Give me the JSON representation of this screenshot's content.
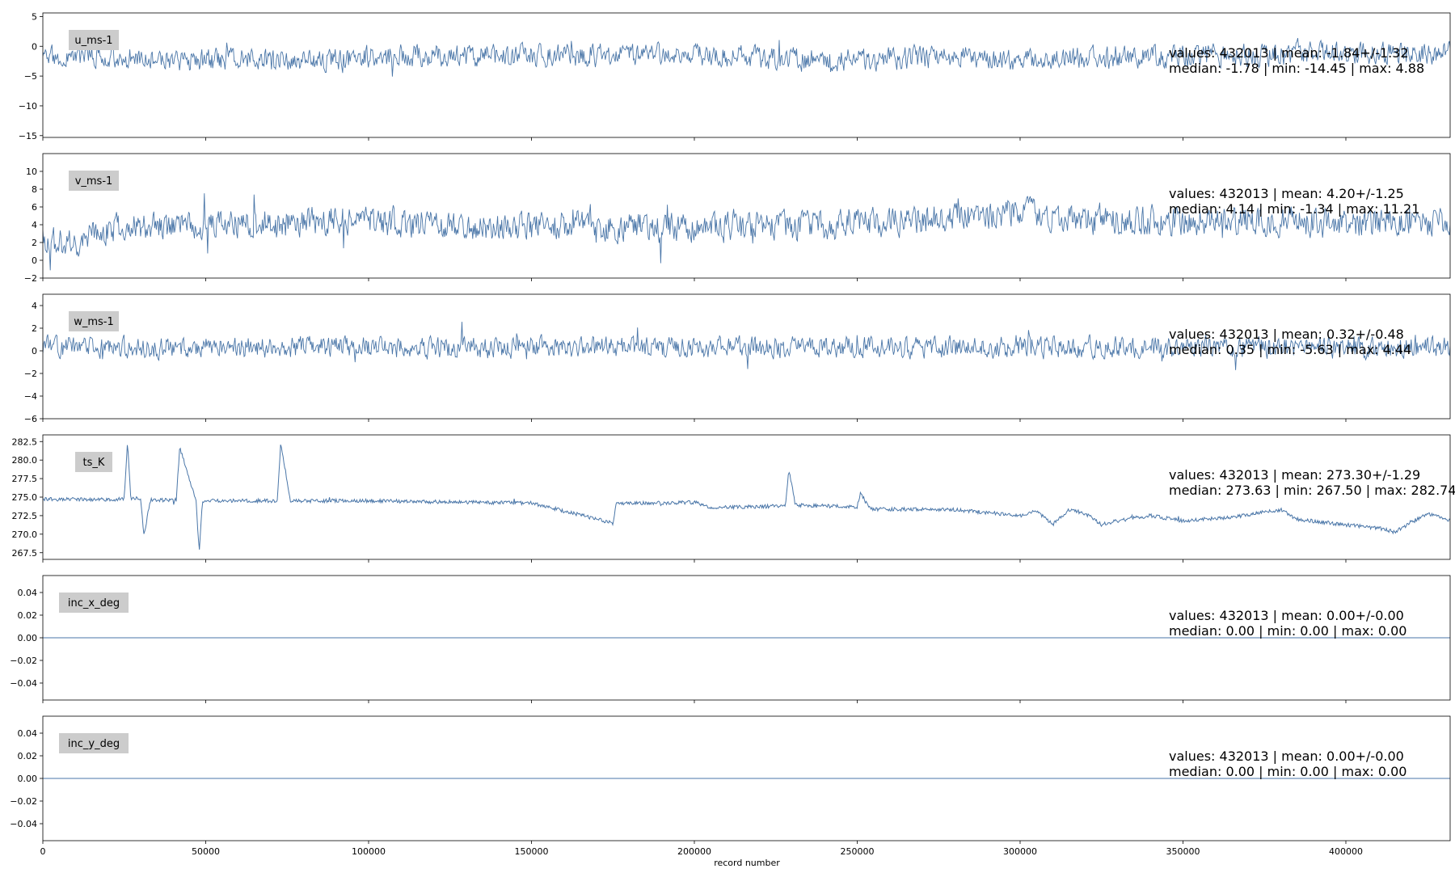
{
  "colors": {
    "series": "#4a76a8",
    "badge_bg": "#cccccc",
    "axis": "#000000"
  },
  "chart_data": {
    "type": "line",
    "xlabel": "record number",
    "xlim": [
      0,
      432013
    ],
    "xticks": [
      0,
      50000,
      100000,
      150000,
      200000,
      250000,
      300000,
      350000,
      400000
    ],
    "xtick_labels": [
      "0",
      "50000",
      "100000",
      "150000",
      "200000",
      "250000",
      "300000",
      "350000",
      "400000"
    ],
    "panels": [
      {
        "name": "u_ms-1",
        "ylim": [
          -15.3,
          5.6
        ],
        "yticks": [
          -15,
          -10,
          -5,
          0,
          5
        ],
        "ytick_labels": [
          "−15",
          "−10",
          "−5",
          "0",
          "5"
        ],
        "stats": [
          "values: 432013 | mean: -1.84+/-1.32",
          "median: -1.78 | min: -14.45 | max: 4.88"
        ],
        "profile": {
          "kind": "noise",
          "x": [
            0,
            20000,
            40000,
            60000,
            80000,
            100000,
            130000,
            160000,
            200000,
            240000,
            280000,
            300000,
            330000,
            360000,
            400000,
            432013
          ],
          "y": [
            -2.0,
            -1.6,
            -2.6,
            -2.2,
            -2.8,
            -1.8,
            -1.6,
            -1.5,
            -1.4,
            -2.4,
            -1.7,
            -2.6,
            -1.8,
            -1.6,
            -1.1,
            -1.4
          ],
          "band": 2.2,
          "spike": 2.6,
          "seed": 3
        }
      },
      {
        "name": "v_ms-1",
        "ylim": [
          -2,
          12
        ],
        "yticks": [
          -2,
          0,
          2,
          4,
          6,
          8,
          10
        ],
        "ytick_labels": [
          "−2",
          "0",
          "2",
          "4",
          "6",
          "8",
          "10"
        ],
        "stats": [
          "values: 432013 | mean: 4.20+/-1.25",
          "median: 4.14 | min: -1.34 | max: 11.21"
        ],
        "profile": {
          "kind": "noise",
          "x": [
            0,
            10000,
            20000,
            50000,
            80000,
            100000,
            130000,
            160000,
            200000,
            240000,
            270000,
            300000,
            330000,
            360000,
            400000,
            432013
          ],
          "y": [
            2.2,
            2.0,
            3.6,
            3.9,
            4.3,
            4.6,
            3.7,
            3.9,
            3.6,
            3.9,
            4.6,
            5.4,
            4.4,
            4.5,
            4.1,
            4.3
          ],
          "band": 1.9,
          "spike": 2.6,
          "seed": 7
        }
      },
      {
        "name": "w_ms-1",
        "ylim": [
          -6,
          5
        ],
        "yticks": [
          -6,
          -4,
          -2,
          0,
          2,
          4
        ],
        "ytick_labels": [
          "−6",
          "−4",
          "−2",
          "0",
          "2",
          "4"
        ],
        "stats": [
          "values: 432013 | mean: 0.32+/-0.48",
          "median: 0.35 | min: -5.63 | max: 4.44"
        ],
        "profile": {
          "kind": "noise",
          "x": [
            0,
            432013
          ],
          "y": [
            0.3,
            0.3
          ],
          "band": 1.1,
          "spike": 1.4,
          "seed": 11
        }
      },
      {
        "name": "ts_K",
        "ylim": [
          266.6,
          283.4
        ],
        "yticks": [
          267.5,
          270.0,
          272.5,
          275.0,
          277.5,
          280.0,
          282.5
        ],
        "ytick_labels": [
          "267.5",
          "270.0",
          "272.5",
          "275.0",
          "277.5",
          "280.0",
          "282.5"
        ],
        "stats": [
          "values: 432013 | mean: 273.30+/-1.29",
          "median: 273.63 | min: 267.50 | max: 282.74"
        ],
        "profile": {
          "kind": "smooth",
          "x": [
            0,
            25000,
            26000,
            27000,
            30000,
            31000,
            33000,
            41000,
            42000,
            47000,
            48000,
            49000,
            72000,
            73000,
            76000,
            100000,
            150000,
            175000,
            176000,
            200000,
            205000,
            228000,
            229000,
            231000,
            250000,
            251000,
            254000,
            280000,
            300000,
            305000,
            310000,
            315000,
            320000,
            325000,
            330000,
            340000,
            350000,
            365000,
            380000,
            385000,
            395000,
            410000,
            415000,
            425000,
            432013
          ],
          "y": [
            274.7,
            274.7,
            282.6,
            274.8,
            274.8,
            269.8,
            274.6,
            274.6,
            281.8,
            274.6,
            267.6,
            274.5,
            274.5,
            282.4,
            274.5,
            274.5,
            274.2,
            271.5,
            274.1,
            274.3,
            273.6,
            273.8,
            278.8,
            273.9,
            273.7,
            275.5,
            273.4,
            273.3,
            272.5,
            273.2,
            271.3,
            273.3,
            272.8,
            271.3,
            271.8,
            272.5,
            271.8,
            272.3,
            273.3,
            272.0,
            271.5,
            270.8,
            270.3,
            272.8,
            271.9
          ],
          "band": 0.25,
          "spike": 0.5,
          "seed": 5
        }
      },
      {
        "name": "inc_x_deg",
        "ylim": [
          -0.055,
          0.055
        ],
        "yticks": [
          -0.04,
          -0.02,
          0.0,
          0.02,
          0.04
        ],
        "ytick_labels": [
          "−0.04",
          "−0.02",
          "0.00",
          "0.02",
          "0.04"
        ],
        "stats": [
          "values: 432013 | mean: 0.00+/-0.00",
          "median: 0.00 | min: 0.00 | max: 0.00"
        ],
        "profile": {
          "kind": "flat",
          "x": [
            0,
            432013
          ],
          "y": [
            0,
            0
          ],
          "band": 0,
          "spike": 0,
          "seed": 1
        }
      },
      {
        "name": "inc_y_deg",
        "ylim": [
          -0.055,
          0.055
        ],
        "yticks": [
          -0.04,
          -0.02,
          0.0,
          0.02,
          0.04
        ],
        "ytick_labels": [
          "−0.04",
          "−0.02",
          "0.00",
          "0.02",
          "0.04"
        ],
        "stats": [
          "values: 432013 | mean: 0.00+/-0.00",
          "median: 0.00 | min: 0.00 | max: 0.00"
        ],
        "profile": {
          "kind": "flat",
          "x": [
            0,
            432013
          ],
          "y": [
            0,
            0
          ],
          "band": 0,
          "spike": 0,
          "seed": 2
        }
      }
    ]
  }
}
